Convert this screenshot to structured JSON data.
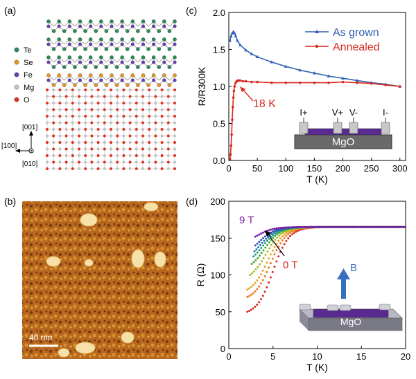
{
  "panels": {
    "a": "(a)",
    "b": "(b)",
    "c": "(c)",
    "d": "(d)"
  },
  "legend_a": [
    {
      "label": "Te",
      "color": "#2e8b57"
    },
    {
      "label": "Se",
      "color": "#e8961e"
    },
    {
      "label": "Fe",
      "color": "#6a3fb5"
    },
    {
      "label": "Mg",
      "color": "#c8c8c8"
    },
    {
      "label": "O",
      "color": "#e0301e"
    }
  ],
  "axes_a": {
    "up": "[001]",
    "left": "[100]",
    "down": "[010]"
  },
  "afm": {
    "scale_bar": "40 nm"
  },
  "chart_data": [
    {
      "id": "c",
      "type": "line",
      "xlabel": "T (K)",
      "ylabel": "R/R300K",
      "xlim": [
        0,
        310
      ],
      "ylim": [
        0,
        2.0
      ],
      "xticks": [
        0,
        50,
        100,
        150,
        200,
        250,
        300
      ],
      "yticks": [
        0.0,
        0.5,
        1.0,
        1.5,
        2.0
      ],
      "ytick_labels": [
        "0.0",
        "0.5",
        "1.0",
        "1.5",
        "2.0"
      ],
      "legend_position": "top-right",
      "series": [
        {
          "name": "As grown",
          "color": "#2f5fb3",
          "x": [
            2,
            4,
            6,
            8,
            10,
            12,
            15,
            20,
            30,
            40,
            50,
            75,
            100,
            125,
            150,
            175,
            200,
            225,
            250,
            275,
            300
          ],
          "y": [
            1.62,
            1.68,
            1.72,
            1.74,
            1.72,
            1.68,
            1.62,
            1.56,
            1.49,
            1.44,
            1.4,
            1.33,
            1.27,
            1.22,
            1.18,
            1.14,
            1.11,
            1.08,
            1.05,
            1.03,
            1.0
          ]
        },
        {
          "name": "Annealed",
          "color": "#d8281c",
          "x": [
            2,
            3,
            4,
            5,
            6,
            7,
            8,
            9,
            10,
            12,
            14,
            16,
            18,
            20,
            25,
            30,
            40,
            50,
            75,
            100,
            125,
            150,
            175,
            200,
            225,
            250,
            275,
            300
          ],
          "y": [
            0.02,
            0.08,
            0.2,
            0.35,
            0.55,
            0.72,
            0.85,
            0.94,
            1.0,
            1.05,
            1.07,
            1.08,
            1.08,
            1.08,
            1.07,
            1.07,
            1.06,
            1.06,
            1.05,
            1.05,
            1.05,
            1.05,
            1.05,
            1.06,
            1.05,
            1.04,
            1.02,
            1.0
          ]
        }
      ],
      "annotation": "18 K",
      "inset": {
        "contacts": [
          "I+",
          "V+",
          "V-",
          "I-"
        ],
        "substrate": "MgO"
      }
    },
    {
      "id": "d",
      "type": "line",
      "xlabel": "T (K)",
      "ylabel": "R (Ω)",
      "xlim": [
        0,
        20
      ],
      "ylim": [
        0,
        200
      ],
      "xticks": [
        0,
        5,
        10,
        15,
        20
      ],
      "yticks": [
        0,
        50,
        100,
        150,
        200
      ],
      "field_high_label": "9 T",
      "field_low_label": "0 T",
      "field_arrow_label": "B",
      "substrate": "MgO",
      "series": [
        {
          "field_T": 0,
          "color": "#d8281c",
          "tc": 3.6,
          "rmin": 50,
          "tstart": 2.1
        },
        {
          "field_T": 1,
          "color": "#e8781e",
          "tc": 3.3,
          "rmin": 70,
          "tstart": 2.1
        },
        {
          "field_T": 2,
          "color": "#f0a020",
          "tc": 3.0,
          "rmin": 80,
          "tstart": 2.1
        },
        {
          "field_T": 3,
          "color": "#a8b820",
          "tc": 2.8,
          "rmin": 100,
          "tstart": 2.4
        },
        {
          "field_T": 4,
          "color": "#40a838",
          "tc": 2.6,
          "rmin": 115,
          "tstart": 2.6
        },
        {
          "field_T": 5,
          "color": "#1e9a78",
          "tc": 2.4,
          "rmin": 125,
          "tstart": 2.8
        },
        {
          "field_T": 6,
          "color": "#1e78b8",
          "tc": 2.2,
          "rmin": 132,
          "tstart": 2.9
        },
        {
          "field_T": 7,
          "color": "#3050b0",
          "tc": 2.0,
          "rmin": 140,
          "tstart": 3.0
        },
        {
          "field_T": 9,
          "color": "#7a1fa0",
          "tc": 1.8,
          "rmin": 152,
          "tstart": 3.0
        }
      ],
      "r_normal": 165
    }
  ]
}
